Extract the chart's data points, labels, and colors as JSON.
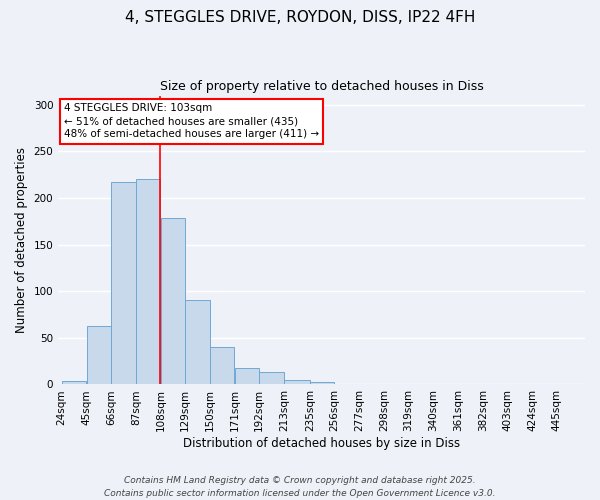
{
  "title": "4, STEGGLES DRIVE, ROYDON, DISS, IP22 4FH",
  "subtitle": "Size of property relative to detached houses in Diss",
  "xlabel": "Distribution of detached houses by size in Diss",
  "ylabel": "Number of detached properties",
  "bin_labels": [
    "24sqm",
    "45sqm",
    "66sqm",
    "87sqm",
    "108sqm",
    "129sqm",
    "150sqm",
    "171sqm",
    "192sqm",
    "213sqm",
    "235sqm",
    "256sqm",
    "277sqm",
    "298sqm",
    "319sqm",
    "340sqm",
    "361sqm",
    "382sqm",
    "403sqm",
    "424sqm",
    "445sqm"
  ],
  "bar_heights": [
    4,
    63,
    217,
    220,
    179,
    91,
    40,
    18,
    13,
    5,
    3,
    1,
    0,
    0,
    0,
    0,
    0,
    0,
    0,
    0,
    1
  ],
  "bin_edges": [
    24,
    45,
    66,
    87,
    108,
    129,
    150,
    171,
    192,
    213,
    235,
    256,
    277,
    298,
    319,
    340,
    361,
    382,
    403,
    424,
    445,
    466
  ],
  "bar_color": "#c9d9ec",
  "bar_edge_color": "#6fa8d5",
  "vline_x": 108,
  "vline_color": "red",
  "annotation_line1": "4 STEGGLES DRIVE: 103sqm",
  "annotation_line2": "← 51% of detached houses are smaller (435)",
  "annotation_line3": "48% of semi-detached houses are larger (411) →",
  "annotation_box_color": "white",
  "annotation_box_edge_color": "red",
  "ylim": [
    0,
    310
  ],
  "yticks": [
    0,
    50,
    100,
    150,
    200,
    250,
    300
  ],
  "background_color": "#eef2f8",
  "grid_color": "white",
  "footer1": "Contains HM Land Registry data © Crown copyright and database right 2025.",
  "footer2": "Contains public sector information licensed under the Open Government Licence v3.0.",
  "title_fontsize": 11,
  "subtitle_fontsize": 9,
  "axis_label_fontsize": 8.5,
  "tick_fontsize": 7.5,
  "annotation_fontsize": 7.5,
  "footer_fontsize": 6.5
}
